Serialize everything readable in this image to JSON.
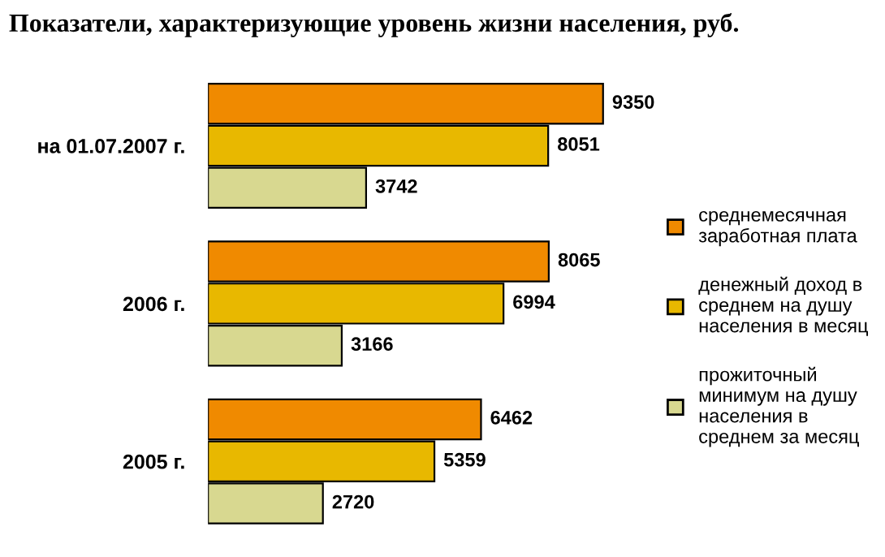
{
  "chart_data": {
    "type": "bar",
    "orientation": "horizontal",
    "title": "Показатели, характеризующие уровень жизни населения, руб.",
    "categories": [
      "на 01.07.2007 г.",
      "2006 г.",
      "2005 г."
    ],
    "series": [
      {
        "name": "среднемесячная заработная плата",
        "color": "#f08a00",
        "values": [
          9350,
          8065,
          6462
        ]
      },
      {
        "name": "денежный доход в среднем на душу населения в месяц",
        "color": "#e8b800",
        "values": [
          8051,
          6994,
          5359
        ]
      },
      {
        "name": "прожиточный минимум на душу населения в среднем за месяц",
        "color": "#d8d890",
        "values": [
          3742,
          3166,
          2720
        ]
      }
    ],
    "data_labels": true,
    "legend": "right",
    "grid": false
  }
}
